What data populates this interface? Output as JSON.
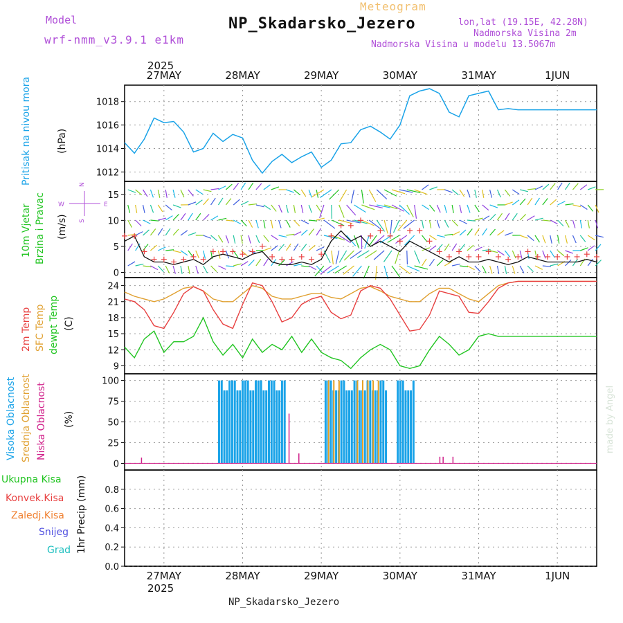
{
  "header": {
    "model_label": "Model",
    "model_name": "wrf-nmm_v3.9.1 e1km",
    "meteogram_label": "Meteogram",
    "station": "NP_Skadarsko_Jezero",
    "lonlat": "lon,lat (19.15E, 42.28N)",
    "elevation": "Nadmorska Visina 2m",
    "model_elevation": "Nadmorska Visina u modelu 13.5067m"
  },
  "footer": {
    "station": "NP_Skadarsko_Jezero"
  },
  "watermark": "made by Angel",
  "time_axis": {
    "year": "2025",
    "days": [
      "27MAY",
      "28MAY",
      "29MAY",
      "30MAY",
      "31MAY",
      "1JUN"
    ]
  },
  "panels": {
    "pressure": {
      "label": "Pritisak na nivou mora",
      "unit": "(hPa)"
    },
    "wind": {
      "label1": "10m Vjetar",
      "label2": "Brzina i Pravac",
      "unit": "(m/s)",
      "compass": {
        "n": "N",
        "s": "S",
        "e": "E",
        "w": "W"
      }
    },
    "temp": {
      "label_t2m": "2m Temp",
      "label_sfc": "SFC Temp",
      "label_dew": "dewpt Temp",
      "unit": "(C)"
    },
    "cloud": {
      "label_high": "Visoka Oblacnost",
      "label_mid": "Srednja Oblacnost",
      "label_low": "Niska Oblacnost",
      "unit": "(%)"
    },
    "precip": {
      "label": "1hr Precip (mm)",
      "legend": [
        "Ukupna Kisa",
        "Konvek.Kisa",
        "Zaledj.Kisa",
        "Snijeg",
        "Grad"
      ]
    }
  },
  "colors": {
    "pressure": "#1aa3e8",
    "t2m": "#e84040",
    "sfc": "#e0a030",
    "dew": "#22c522",
    "high": "#1aa3e8",
    "mid": "#e8a020",
    "low": "#d0208a",
    "purple": "#b050d8",
    "legend_total": "#22c522",
    "legend_conv": "#e84040",
    "legend_frz": "#f08030",
    "legend_snow": "#5050e0",
    "legend_hail": "#20c0c0"
  },
  "chart_data": [
    {
      "type": "line",
      "name": "pressure",
      "x_hours_start": "26MAY 12UTC",
      "ylim": [
        1011.2,
        1019.4
      ],
      "yticks": [
        1012,
        1014,
        1016,
        1018
      ],
      "x": [
        0,
        3,
        6,
        9,
        12,
        15,
        18,
        21,
        24,
        27,
        30,
        33,
        36,
        39,
        42,
        45,
        48,
        51,
        54,
        57,
        60,
        63,
        66,
        69,
        72,
        75,
        78,
        81,
        84,
        87,
        90,
        93,
        96,
        99,
        102,
        105,
        108,
        111,
        114,
        117,
        120,
        123,
        126,
        129,
        132,
        135,
        138,
        141,
        144
      ],
      "values": [
        1014.5,
        1013.6,
        1014.8,
        1016.6,
        1016.2,
        1016.3,
        1015.4,
        1013.7,
        1014.0,
        1015.3,
        1014.6,
        1015.2,
        1014.9,
        1013.0,
        1011.9,
        1012.9,
        1013.5,
        1012.8,
        1013.3,
        1013.7,
        1012.4,
        1013.0,
        1014.4,
        1014.5,
        1015.6,
        1015.9,
        1015.4,
        1014.8,
        1016.0,
        1018.5,
        1018.9,
        1019.1,
        1018.7,
        1017.1,
        1016.7,
        1018.5,
        1018.7,
        1018.9,
        1017.3,
        1017.4,
        1017.3,
        1017.3,
        1017.3,
        1017.3,
        1017.3,
        1017.3,
        1017.3,
        1017.3,
        1017.3
      ]
    },
    {
      "type": "line",
      "name": "wind",
      "ylim": [
        -1,
        17.5
      ],
      "yticks": [
        0,
        5,
        10,
        15
      ],
      "x": [
        0,
        3,
        6,
        9,
        12,
        15,
        18,
        21,
        24,
        27,
        30,
        33,
        36,
        39,
        42,
        45,
        48,
        51,
        54,
        57,
        60,
        63,
        66,
        69,
        72,
        75,
        78,
        81,
        84,
        87,
        90,
        93,
        96,
        99,
        102,
        105,
        108,
        111,
        114,
        117,
        120,
        123,
        126,
        129,
        132,
        135,
        138,
        141,
        144
      ],
      "series": [
        {
          "name": "speed",
          "values": [
            6,
            7,
            3,
            2,
            2,
            1.5,
            2,
            2.5,
            1.5,
            3,
            3.5,
            3,
            2.5,
            3.5,
            4,
            2,
            1.5,
            1.5,
            2,
            1.5,
            2.5,
            6,
            8,
            6,
            7,
            5,
            6,
            5,
            4,
            6,
            5,
            4,
            3,
            2,
            3,
            2,
            2,
            2.5,
            2,
            1.5,
            2,
            3,
            2.5,
            2,
            2,
            2,
            2,
            2.5,
            2
          ]
        },
        {
          "name": "gust",
          "values": [
            7,
            7,
            4,
            2.5,
            2.5,
            2,
            2.5,
            3,
            2.5,
            4,
            4,
            4,
            3.5,
            4,
            5,
            3,
            2.5,
            2.5,
            3,
            2.5,
            3.5,
            7,
            9,
            9,
            10,
            7,
            8,
            7,
            6,
            8,
            8,
            6,
            4,
            3,
            4,
            3,
            3,
            4,
            3,
            2.5,
            3,
            4,
            3,
            3,
            3,
            3,
            3,
            3.5,
            3
          ]
        }
      ]
    },
    {
      "type": "line",
      "name": "temperature",
      "ylim": [
        7.5,
        25.5
      ],
      "yticks": [
        9,
        12,
        15,
        18,
        21,
        24
      ],
      "x": [
        0,
        3,
        6,
        9,
        12,
        15,
        18,
        21,
        24,
        27,
        30,
        33,
        36,
        39,
        42,
        45,
        48,
        51,
        54,
        57,
        60,
        63,
        66,
        69,
        72,
        75,
        78,
        81,
        84,
        87,
        90,
        93,
        96,
        99,
        102,
        105,
        108,
        111,
        114,
        117,
        120,
        123,
        126,
        129,
        132,
        135,
        138,
        141,
        144
      ],
      "series": [
        {
          "name": "2m Temp",
          "values": [
            21.5,
            21.0,
            19.5,
            16.5,
            16.0,
            19.0,
            22.5,
            23.8,
            23.0,
            19.5,
            16.8,
            16.0,
            20.5,
            24.5,
            24.0,
            21.0,
            17.2,
            18.0,
            20.5,
            21.5,
            22.0,
            19.0,
            17.8,
            18.5,
            23.0,
            24.0,
            23.5,
            21.5,
            18.5,
            15.5,
            15.8,
            18.5,
            23.0,
            22.5,
            22.0,
            19.0,
            18.8,
            21.0,
            23.5,
            24.5,
            24.8,
            24.8,
            24.8,
            24.8,
            24.8,
            24.8,
            24.8,
            24.8,
            24.8
          ]
        },
        {
          "name": "SFC Temp",
          "values": [
            22.8,
            22.0,
            21.5,
            21.0,
            21.5,
            22.5,
            23.5,
            23.8,
            23.0,
            21.5,
            21.0,
            21.0,
            22.5,
            24.0,
            23.5,
            22.0,
            21.5,
            21.5,
            22.0,
            22.5,
            22.5,
            21.8,
            21.5,
            22.5,
            23.5,
            23.8,
            23.0,
            22.0,
            21.5,
            21.0,
            21.0,
            22.5,
            23.5,
            23.5,
            22.5,
            21.5,
            21.0,
            22.5,
            24.0,
            24.5,
            24.8,
            24.8,
            24.8,
            24.8,
            24.8,
            24.8,
            24.8,
            24.8,
            24.8
          ]
        },
        {
          "name": "dewpt Temp",
          "values": [
            12.5,
            10.5,
            14.0,
            15.5,
            11.5,
            13.5,
            13.5,
            14.5,
            18.0,
            13.5,
            11.0,
            13.0,
            10.5,
            14.0,
            11.5,
            13.0,
            12.0,
            14.5,
            11.5,
            14.0,
            11.5,
            10.5,
            10.0,
            8.5,
            10.5,
            12.0,
            13.0,
            12.0,
            9.0,
            8.5,
            9.0,
            12.0,
            14.5,
            13.0,
            11.0,
            12.0,
            14.5,
            15.0,
            14.5,
            14.5,
            14.5,
            14.5,
            14.5,
            14.5,
            14.5,
            14.5,
            14.5,
            14.5,
            14.5
          ]
        }
      ]
    },
    {
      "type": "bar",
      "name": "cloud cover",
      "ylim": [
        -8,
        108
      ],
      "yticks": [
        0,
        25,
        50,
        75,
        100
      ],
      "periods": [
        {
          "from": 28.5,
          "to": 49,
          "high": 100,
          "mid": 0
        },
        {
          "from": 61,
          "to": 80,
          "high": 100,
          "mid": 100
        },
        {
          "from": 83,
          "to": 88,
          "high": 100,
          "mid": 100
        }
      ],
      "low_spikes": [
        {
          "x": 5,
          "v": 7
        },
        {
          "x": 50,
          "v": 60
        },
        {
          "x": 53,
          "v": 12
        },
        {
          "x": 96,
          "v": 8
        },
        {
          "x": 97,
          "v": 8
        },
        {
          "x": 100,
          "v": 8
        }
      ]
    },
    {
      "type": "bar",
      "name": "1hr Precip (mm)",
      "ylim": [
        0,
        1.0
      ],
      "yticks": [
        0,
        0.2,
        0.4,
        0.6,
        0.8
      ],
      "x": [],
      "values": []
    }
  ]
}
